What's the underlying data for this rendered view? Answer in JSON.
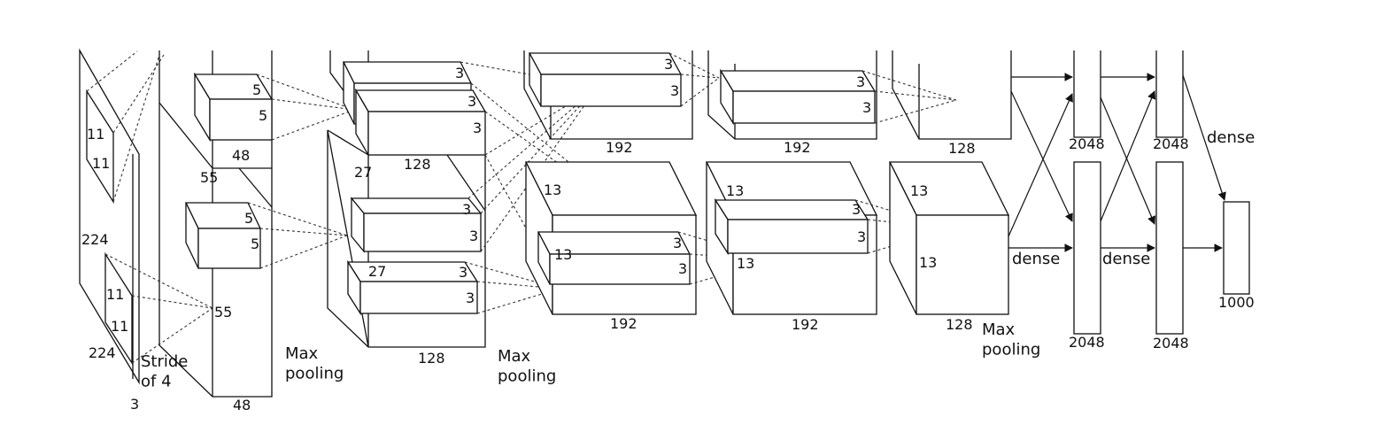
{
  "diagram": {
    "input": {
      "h": "224",
      "w": "224",
      "d": "3",
      "kh": "11",
      "kw": "11",
      "stride": "Stride\nof 4"
    },
    "conv1": {
      "size": "55",
      "depth_top": "48",
      "depth_bottom": "48",
      "k": "5"
    },
    "conv2": {
      "size": "27",
      "depth": "128",
      "k": "3"
    },
    "conv3": {
      "size": "13",
      "depth": "192",
      "k": "3"
    },
    "conv4": {
      "size": "13",
      "depth": "192",
      "k": "3"
    },
    "conv5": {
      "size": "13",
      "depth": "128"
    },
    "fc": {
      "fc6": "2048",
      "fc7": "2048",
      "out": "1000"
    },
    "labels": {
      "max_pooling": "Max\npooling",
      "dense": "dense"
    }
  }
}
